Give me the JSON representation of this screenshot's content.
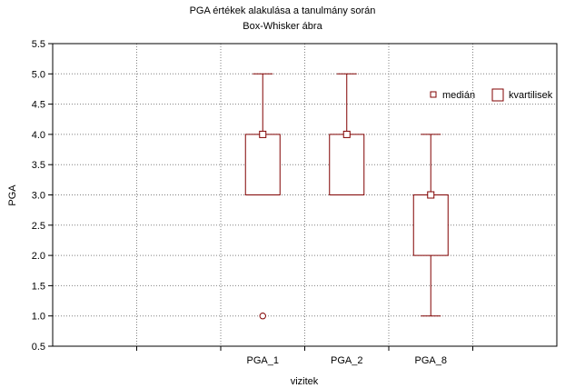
{
  "chart_data": {
    "type": "boxplot",
    "title": "PGA értékek alakulása a tanulmány során",
    "subtitle": "Box-Whisker ábra",
    "xlabel": "vizitek",
    "ylabel": "PGA",
    "ylim": [
      0.5,
      5.5
    ],
    "yticks": [
      "5.5",
      "5.0",
      "4.5",
      "4.0",
      "3.5",
      "3.0",
      "2.5",
      "2.0",
      "1.5",
      "1.0",
      "0.5"
    ],
    "categories": [
      "PGA_1",
      "PGA_2",
      "PGA_8"
    ],
    "boxes": [
      {
        "category": "PGA_1",
        "whisker_low": 3.0,
        "q1": 3.0,
        "median": 4.0,
        "q3": 4.0,
        "whisker_high": 5.0,
        "outliers": [
          1.0
        ]
      },
      {
        "category": "PGA_2",
        "whisker_low": 3.0,
        "q1": 3.0,
        "median": 4.0,
        "q3": 4.0,
        "whisker_high": 5.0,
        "outliers": []
      },
      {
        "category": "PGA_8",
        "whisker_low": 1.0,
        "q1": 2.0,
        "median": 3.0,
        "q3": 3.0,
        "whisker_high": 4.0,
        "outliers": []
      }
    ],
    "legend": {
      "position": "right",
      "items": [
        {
          "symbol": "small-square",
          "label": "medián"
        },
        {
          "symbol": "box",
          "label": "kvartilisek"
        }
      ]
    },
    "grid": true,
    "series_color": "#800000"
  }
}
